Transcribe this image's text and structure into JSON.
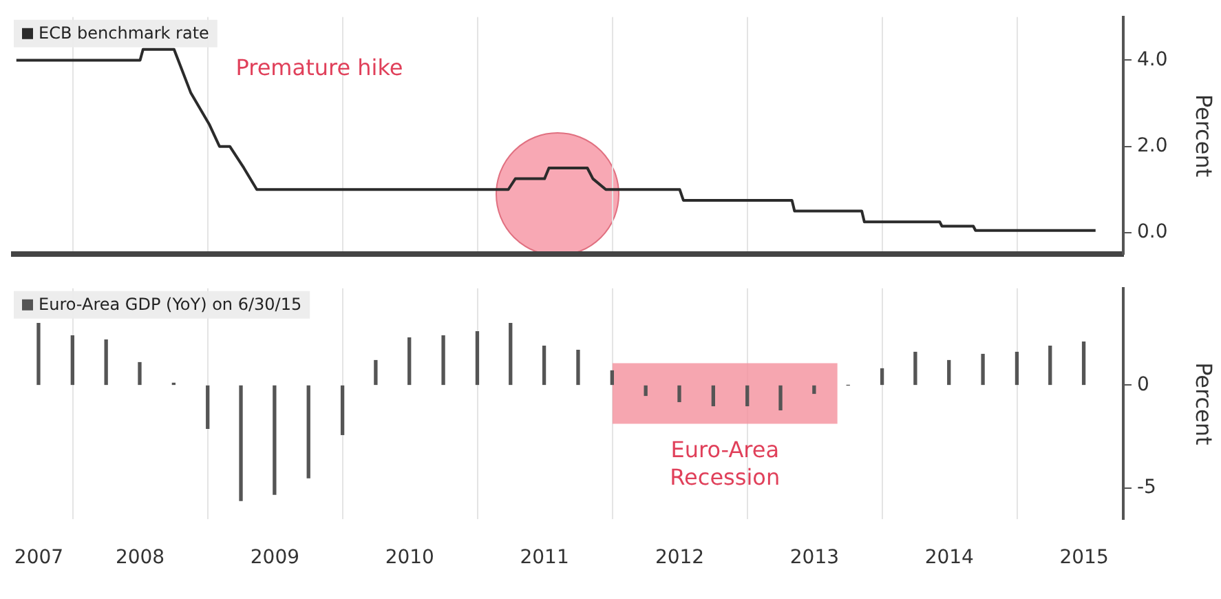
{
  "chart_data": [
    {
      "type": "line",
      "ylabel": "Percent",
      "ylim": [
        -0.5,
        5.0
      ],
      "yticks": [
        {
          "value": 0,
          "label": "0.0"
        },
        {
          "value": 2,
          "label": "2.0"
        },
        {
          "value": 4,
          "label": "4.0"
        }
      ],
      "xlim": [
        "2007-07-25",
        "2015-10-15"
      ],
      "xticks": [
        {
          "value": "2008-01-01",
          "label": null
        },
        {
          "value": "2009-01-01",
          "label": null
        },
        {
          "value": "2010-01-01",
          "label": null
        },
        {
          "value": "2011-01-01",
          "label": null
        },
        {
          "value": "2012-01-01",
          "label": null
        },
        {
          "value": "2013-01-01",
          "label": null
        },
        {
          "value": "2014-01-01",
          "label": null
        },
        {
          "value": "2015-01-01",
          "label": null
        }
      ],
      "tick_labels": "y",
      "grid": "x",
      "legend": "top left",
      "marker": "none",
      "line_style": "solid",
      "annotations": [
        "Premature hike"
      ],
      "series": [
        {
          "name": "ECB benchmark rate",
          "color": "#2b2b2b",
          "x": [
            "2007-08-01",
            "2008-07-01",
            "2008-07-09",
            "2008-10-01",
            "2008-11-15",
            "2009-01-05",
            "2009-02-01",
            "2009-03-01",
            "2009-04-08",
            "2009-05-13",
            "2011-03-25",
            "2011-04-13",
            "2011-07-01",
            "2011-07-13",
            "2011-10-25",
            "2011-11-09",
            "2011-12-14",
            "2012-07-01",
            "2012-07-11",
            "2013-05-01",
            "2013-05-08",
            "2013-11-06",
            "2013-11-13",
            "2014-06-05",
            "2014-06-11",
            "2014-09-04",
            "2014-09-10",
            "2015-08-01"
          ],
          "values": [
            4.0,
            4.0,
            4.25,
            4.25,
            3.25,
            2.5,
            2.0,
            2.0,
            1.5,
            1.0,
            1.0,
            1.25,
            1.25,
            1.5,
            1.5,
            1.25,
            1.0,
            1.0,
            0.75,
            0.75,
            0.5,
            0.5,
            0.25,
            0.25,
            0.15,
            0.15,
            0.05,
            0.05
          ]
        }
      ]
    },
    {
      "type": "bar",
      "ylabel": "Percent",
      "ylim": [
        -6.5,
        4.7
      ],
      "yticks": [
        -5,
        0
      ],
      "xlim": [
        "2007-07-25",
        "2015-10-15"
      ],
      "xticks": [
        {
          "value": "2007-10-01",
          "label": "2007"
        },
        {
          "value": "2008-01-01",
          "label": null
        },
        {
          "value": "2008-07-01",
          "label": "2008"
        },
        {
          "value": "2009-01-01",
          "label": null
        },
        {
          "value": "2009-07-01",
          "label": "2009"
        },
        {
          "value": "2010-01-01",
          "label": null
        },
        {
          "value": "2010-07-01",
          "label": "2010"
        },
        {
          "value": "2011-01-01",
          "label": null
        },
        {
          "value": "2011-07-01",
          "label": "2011"
        },
        {
          "value": "2012-01-01",
          "label": null
        },
        {
          "value": "2012-07-01",
          "label": "2012"
        },
        {
          "value": "2013-01-01",
          "label": null
        },
        {
          "value": "2013-07-01",
          "label": "2013"
        },
        {
          "value": "2014-01-01",
          "label": null
        },
        {
          "value": "2014-07-01",
          "label": "2014"
        },
        {
          "value": "2015-01-01",
          "label": null
        },
        {
          "value": "2015-07-01",
          "label": "2015"
        }
      ],
      "grid": "x",
      "legend": "top left",
      "bands": [
        {
          "axis": "x",
          "from": "2012-01-01",
          "to": "2013-09-01",
          "label": "Euro-Area Recession",
          "color": "#f4909c"
        }
      ],
      "series": [
        {
          "name": "Euro-Area GDP (YoY) on 6/30/15",
          "color": "#555555",
          "x": [
            "2007-09-30",
            "2007-12-31",
            "2008-03-31",
            "2008-06-30",
            "2008-09-30",
            "2008-12-31",
            "2009-03-31",
            "2009-06-30",
            "2009-09-30",
            "2009-12-31",
            "2010-03-31",
            "2010-06-30",
            "2010-09-30",
            "2010-12-31",
            "2011-03-31",
            "2011-06-30",
            "2011-09-30",
            "2011-12-31",
            "2012-03-31",
            "2012-06-30",
            "2012-09-30",
            "2012-12-31",
            "2013-03-31",
            "2013-06-30",
            "2013-09-30",
            "2013-12-31",
            "2014-03-31",
            "2014-06-30",
            "2014-09-30",
            "2014-12-31",
            "2015-03-31",
            "2015-06-30"
          ],
          "values": [
            3.0,
            2.4,
            2.2,
            1.1,
            0.1,
            -2.1,
            -5.6,
            -5.3,
            -4.5,
            -2.4,
            1.2,
            2.3,
            2.4,
            2.6,
            3.0,
            1.9,
            1.7,
            0.7,
            -0.5,
            -0.8,
            -1.0,
            -1.0,
            -1.2,
            -0.4,
            0.0,
            0.8,
            1.6,
            1.2,
            1.5,
            1.6,
            1.9,
            2.1
          ]
        }
      ]
    }
  ]
}
